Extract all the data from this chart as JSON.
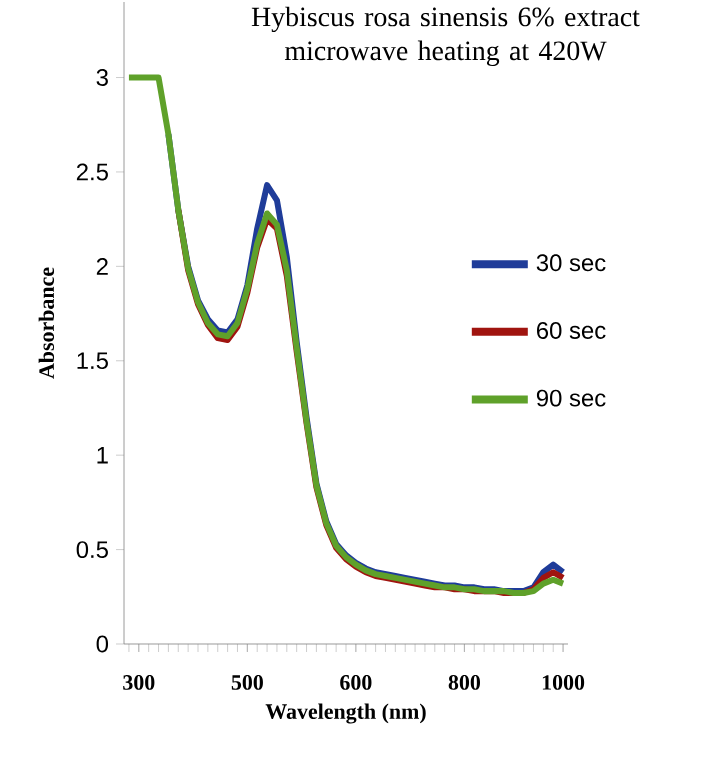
{
  "chart_data": {
    "type": "line",
    "title": "Hybiscus rosa sinensis 6% extract microwave heating at 420W",
    "xlabel": "Wavelength (nm)",
    "ylabel": "Absorbance",
    "categories": [
      null,
      "300",
      null,
      null,
      null,
      null,
      null,
      null,
      null,
      null,
      null,
      null,
      "500",
      null,
      null,
      null,
      null,
      null,
      null,
      null,
      null,
      null,
      null,
      "600",
      null,
      null,
      null,
      null,
      null,
      null,
      null,
      null,
      null,
      null,
      "800",
      null,
      null,
      null,
      null,
      null,
      null,
      null,
      null,
      null,
      "1000"
    ],
    "series": [
      {
        "name": "30 sec",
        "color": "#1f3c99",
        "values": [
          null,
          null,
          null,
          null,
          2.7,
          2.3,
          2.0,
          1.82,
          1.72,
          1.66,
          1.65,
          1.72,
          1.9,
          2.2,
          2.43,
          2.35,
          2.05,
          1.6,
          1.2,
          0.85,
          0.65,
          0.53,
          0.47,
          0.43,
          0.4,
          0.38,
          0.37,
          0.36,
          0.35,
          0.34,
          0.33,
          0.32,
          0.31,
          0.31,
          0.3,
          0.3,
          0.29,
          0.29,
          0.28,
          0.28,
          0.28,
          0.3,
          0.38,
          0.42,
          0.38
        ]
      },
      {
        "name": "60 sec",
        "color": "#a0140f",
        "values": [
          null,
          null,
          null,
          null,
          null,
          2.3,
          1.98,
          1.8,
          1.69,
          1.62,
          1.61,
          1.68,
          1.86,
          2.1,
          2.25,
          2.2,
          1.95,
          1.55,
          1.17,
          0.83,
          0.63,
          0.51,
          0.45,
          0.41,
          0.38,
          0.36,
          0.35,
          0.34,
          0.33,
          0.32,
          0.31,
          0.3,
          0.3,
          0.29,
          0.29,
          0.28,
          0.28,
          0.28,
          0.27,
          0.27,
          0.27,
          0.29,
          0.35,
          0.38,
          0.35
        ]
      },
      {
        "name": "90 sec",
        "color": "#5fa12a",
        "values": [
          3,
          3,
          3,
          3,
          2.7,
          2.3,
          1.99,
          1.81,
          1.7,
          1.64,
          1.63,
          1.7,
          1.88,
          2.12,
          2.28,
          2.22,
          1.98,
          1.57,
          1.18,
          0.84,
          0.64,
          0.52,
          0.46,
          0.42,
          0.39,
          0.37,
          0.36,
          0.35,
          0.34,
          0.33,
          0.32,
          0.31,
          0.3,
          0.3,
          0.29,
          0.29,
          0.28,
          0.28,
          0.28,
          0.27,
          0.27,
          0.28,
          0.32,
          0.34,
          0.32
        ]
      }
    ],
    "ylim": [
      0,
      3.4
    ],
    "yticks": [
      0,
      0.5,
      1,
      1.5,
      2,
      2.5,
      3
    ],
    "legend": "right"
  }
}
